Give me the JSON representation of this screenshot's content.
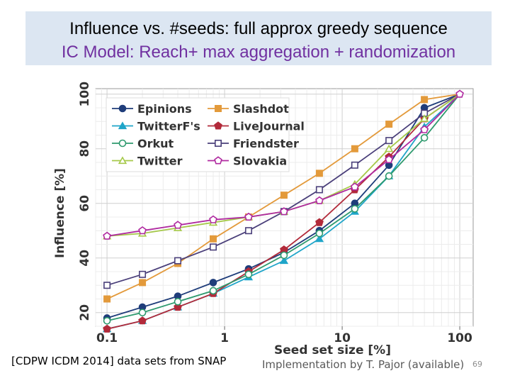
{
  "slide": {
    "title_line1": "Influence vs. #seeds:  full approx greedy sequence",
    "title_line2": "IC Model: Reach+ max aggregation + randomization",
    "footer_left": "[CDPW  ICDM 2014]  data sets from SNAP",
    "footer_right": "Implementation by T. Pajor (available)",
    "page_number": "69"
  },
  "chart_data": {
    "type": "line",
    "xscale": "log",
    "xlabel": "Seed set size [%]",
    "ylabel": "Influence [%]",
    "xlim": [
      0.08,
      130
    ],
    "ylim": [
      15,
      102
    ],
    "xticks": [
      0.1,
      1,
      10,
      100
    ],
    "xtick_labels": [
      "0.1",
      "1",
      "10",
      "100"
    ],
    "yticks": [
      20,
      40,
      60,
      80,
      100
    ],
    "grid": true,
    "legend_position": "top-left",
    "x": [
      0.1,
      0.2,
      0.4,
      0.8,
      1.6,
      3.2,
      6.4,
      12.8,
      25,
      50,
      100
    ],
    "series": [
      {
        "name": "Epinions",
        "color": "#1f3d7a",
        "marker": "circle-filled",
        "values": [
          18,
          22,
          26,
          31,
          36,
          42,
          50,
          60,
          74,
          95,
          100
        ]
      },
      {
        "name": "Slashdot",
        "color": "#e39a3b",
        "marker": "square-filled",
        "values": [
          25,
          31,
          38,
          47,
          55,
          63,
          71,
          80,
          89,
          98,
          100
        ]
      },
      {
        "name": "TwitterF's",
        "color": "#1fa5c9",
        "marker": "triangle-filled",
        "values": [
          14,
          17,
          22,
          27,
          33,
          39,
          47,
          57,
          70,
          88,
          100
        ]
      },
      {
        "name": "LiveJournal",
        "color": "#b22a3a",
        "marker": "pentagon-filled",
        "values": [
          14,
          17,
          22,
          27,
          35,
          43,
          53,
          65,
          77,
          91,
          100
        ]
      },
      {
        "name": "Orkut",
        "color": "#2e9a6e",
        "marker": "circle-open",
        "values": [
          17,
          20,
          24,
          28,
          34,
          41,
          49,
          58,
          70,
          84,
          100
        ]
      },
      {
        "name": "Friendster",
        "color": "#4a3f7a",
        "marker": "square-open",
        "values": [
          30,
          34,
          39,
          44,
          50,
          57,
          65,
          74,
          83,
          93,
          100
        ]
      },
      {
        "name": "Twitter",
        "color": "#a6c94a",
        "marker": "triangle-open",
        "values": [
          48,
          49,
          51,
          53,
          55,
          57,
          61,
          67,
          80,
          91,
          100
        ]
      },
      {
        "name": "Slovakia",
        "color": "#b02aa0",
        "marker": "pentagon-open",
        "values": [
          48,
          50,
          52,
          54,
          55,
          57,
          61,
          66,
          76,
          87,
          100
        ]
      }
    ]
  }
}
